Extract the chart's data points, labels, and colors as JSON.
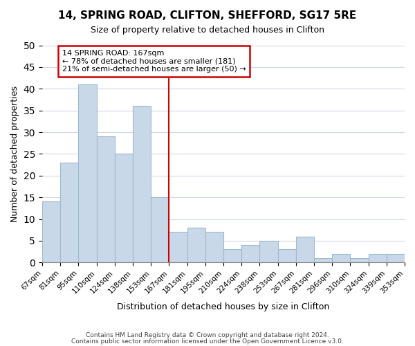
{
  "title1": "14, SPRING ROAD, CLIFTON, SHEFFORD, SG17 5RE",
  "title2": "Size of property relative to detached houses in Clifton",
  "xlabel": "Distribution of detached houses by size in Clifton",
  "ylabel": "Number of detached properties",
  "footer1": "Contains HM Land Registry data © Crown copyright and database right 2024.",
  "footer2": "Contains public sector information licensed under the Open Government Licence v3.0.",
  "bin_labels": [
    "67sqm",
    "81sqm",
    "95sqm",
    "110sqm",
    "124sqm",
    "138sqm",
    "153sqm",
    "167sqm",
    "181sqm",
    "195sqm",
    "210sqm",
    "224sqm",
    "238sqm",
    "253sqm",
    "267sqm",
    "281sqm",
    "296sqm",
    "310sqm",
    "324sqm",
    "339sqm",
    "353sqm"
  ],
  "counts": [
    14,
    23,
    41,
    29,
    25,
    36,
    15,
    7,
    8,
    7,
    3,
    4,
    5,
    3,
    6,
    1,
    2,
    1,
    2,
    2
  ],
  "property_line_index": 7,
  "bar_color": "#c8d8e8",
  "bar_edge_color": "#a0b8d0",
  "line_color": "#cc0000",
  "annotation_line1": "14 SPRING ROAD: 167sqm",
  "annotation_line2": "← 78% of detached houses are smaller (181)",
  "annotation_line3": "21% of semi-detached houses are larger (50) →",
  "annotation_box_edge": "#cc0000",
  "ylim": [
    0,
    50
  ],
  "yticks": [
    0,
    5,
    10,
    15,
    20,
    25,
    30,
    35,
    40,
    45,
    50
  ],
  "background_color": "#ffffff",
  "grid_color": "#d0d8e8"
}
